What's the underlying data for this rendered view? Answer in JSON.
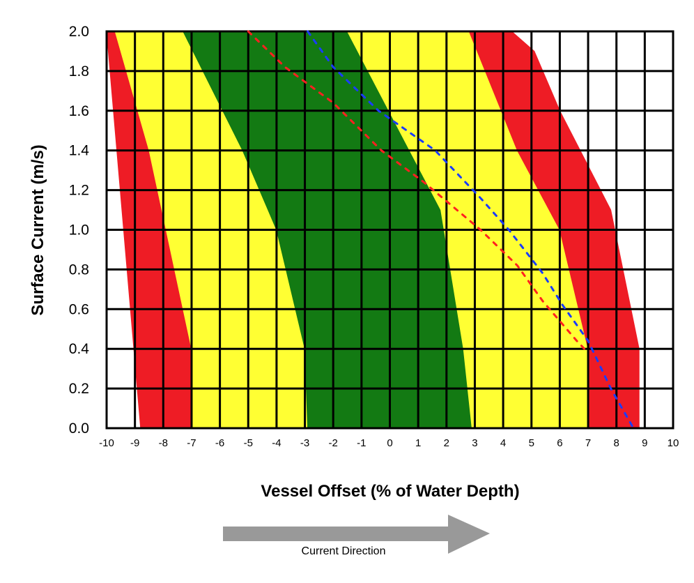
{
  "chart_data": {
    "type": "area",
    "xlabel": "Vessel Offset (% of Water Depth)",
    "ylabel": "Surface Current (m/s)",
    "xlim": [
      -10,
      10
    ],
    "ylim": [
      0,
      2.0
    ],
    "x_ticks": [
      "-10",
      "-9",
      "-8",
      "-7",
      "-6",
      "-5",
      "-4",
      "-3",
      "-2",
      "-1",
      "0",
      "1",
      "2",
      "3",
      "4",
      "5",
      "6",
      "7",
      "8",
      "9",
      "10"
    ],
    "y_ticks": [
      "0.0",
      "0.2",
      "0.4",
      "0.6",
      "0.8",
      "1.0",
      "1.2",
      "1.4",
      "1.6",
      "1.8",
      "2.0"
    ],
    "grid": true,
    "colors": {
      "red": "#ee1c25",
      "yellow": "#ffff33",
      "green": "#137a13",
      "blue_dash": "#1a3cff",
      "red_dash": "#ff2020"
    },
    "regions": [
      {
        "color": "red",
        "boundary": [
          [
            -10,
            2.0
          ],
          [
            -8.8,
            0
          ],
          [
            -7.0,
            0
          ],
          [
            -7.0,
            0.4
          ],
          [
            -8.5,
            1.4
          ],
          [
            -9.7,
            2.0
          ]
        ]
      },
      {
        "color": "yellow",
        "boundary": [
          [
            -9.7,
            2.0
          ],
          [
            -8.5,
            1.4
          ],
          [
            -7.0,
            0.4
          ],
          [
            -7.0,
            0
          ],
          [
            -2.9,
            0
          ],
          [
            -3.0,
            0.4
          ],
          [
            -4.0,
            1.0
          ],
          [
            -5.2,
            1.4
          ],
          [
            -7.3,
            2.0
          ]
        ]
      },
      {
        "color": "green",
        "boundary": [
          [
            -7.3,
            2.0
          ],
          [
            -5.2,
            1.4
          ],
          [
            -4.0,
            1.0
          ],
          [
            -3.0,
            0.4
          ],
          [
            -2.9,
            0
          ],
          [
            2.9,
            0
          ],
          [
            2.6,
            0.4
          ],
          [
            1.8,
            1.1
          ],
          [
            -1.5,
            2.0
          ]
        ]
      },
      {
        "color": "yellow",
        "boundary": [
          [
            -1.5,
            2.0
          ],
          [
            1.8,
            1.1
          ],
          [
            2.6,
            0.4
          ],
          [
            2.9,
            0
          ],
          [
            7.0,
            0
          ],
          [
            7.0,
            0.4
          ],
          [
            6.0,
            1.0
          ],
          [
            4.5,
            1.4
          ],
          [
            2.8,
            2.0
          ]
        ]
      },
      {
        "color": "red",
        "boundary": [
          [
            2.8,
            2.0
          ],
          [
            4.5,
            1.4
          ],
          [
            6.0,
            1.0
          ],
          [
            7.0,
            0.4
          ],
          [
            7.0,
            0
          ],
          [
            8.8,
            0
          ],
          [
            8.8,
            0.4
          ],
          [
            7.8,
            1.1
          ],
          [
            6.0,
            1.6
          ],
          [
            5.1,
            1.9
          ],
          [
            4.3,
            2.0
          ]
        ]
      }
    ],
    "series": [
      {
        "style": "dashed",
        "color": "blue_dash",
        "points": [
          [
            -2.9,
            2.0
          ],
          [
            -2.0,
            1.82
          ],
          [
            -0.4,
            1.6
          ],
          [
            1.6,
            1.4
          ],
          [
            3.2,
            1.16
          ],
          [
            4.2,
            1.0
          ],
          [
            5.4,
            0.78
          ],
          [
            6.1,
            0.62
          ],
          [
            7.0,
            0.44
          ],
          [
            7.8,
            0.2
          ],
          [
            8.6,
            0.0
          ]
        ]
      },
      {
        "style": "dashed",
        "color": "red_dash",
        "points": [
          [
            -5.0,
            2.0
          ],
          [
            -3.7,
            1.82
          ],
          [
            -2.0,
            1.64
          ],
          [
            -0.3,
            1.4
          ],
          [
            1.2,
            1.24
          ],
          [
            3.2,
            1.0
          ],
          [
            4.5,
            0.82
          ],
          [
            5.4,
            0.64
          ],
          [
            6.6,
            0.44
          ],
          [
            7.0,
            0.38
          ]
        ]
      }
    ],
    "annotations": {
      "arrow_caption": "Current Direction"
    }
  }
}
